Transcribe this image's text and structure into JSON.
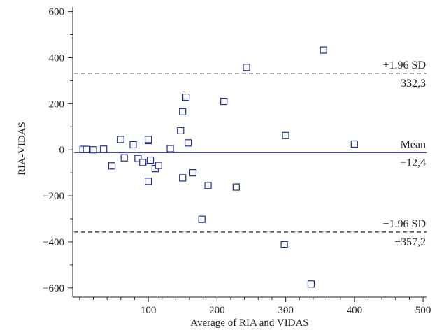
{
  "chart_data": {
    "type": "scatter",
    "title": "",
    "xlabel": "Average of RIA and VIDAS",
    "ylabel": "RIA-VIDAS",
    "xlim": [
      -10,
      505
    ],
    "ylim": [
      -640,
      620
    ],
    "x_ticks": [
      100,
      200,
      300,
      400,
      500
    ],
    "x_tick_labels": [
      "100",
      "200",
      "300",
      "400",
      "500"
    ],
    "y_ticks": [
      -600,
      -400,
      -200,
      0,
      200,
      400,
      600
    ],
    "y_tick_labels": [
      "−600",
      "−400",
      "−200",
      "0",
      "200",
      "400",
      "600"
    ],
    "grid": false,
    "reference_lines": [
      {
        "id": "upper",
        "y": 332.3,
        "style": "dashed",
        "label_top": "+1.96 SD",
        "label_bottom": "332,3"
      },
      {
        "id": "mean",
        "y": -12.4,
        "style": "solid",
        "color": "#2030a0",
        "label_top": "Mean",
        "label_bottom": "−12,4"
      },
      {
        "id": "lower",
        "y": -357.2,
        "style": "dashed",
        "label_top": "−1.96 SD",
        "label_bottom": "−357,2"
      }
    ],
    "series": [
      {
        "marker": "open-square",
        "color": "#1d2f8f",
        "points": [
          [
            5,
            2
          ],
          [
            10,
            2
          ],
          [
            20,
            0
          ],
          [
            35,
            3
          ],
          [
            47,
            -70
          ],
          [
            60,
            45
          ],
          [
            65,
            -35
          ],
          [
            78,
            22
          ],
          [
            85,
            -38
          ],
          [
            92,
            -55
          ],
          [
            100,
            40
          ],
          [
            100,
            45
          ],
          [
            100,
            -137
          ],
          [
            103,
            -45
          ],
          [
            110,
            -82
          ],
          [
            115,
            -68
          ],
          [
            132,
            5
          ],
          [
            147,
            83
          ],
          [
            150,
            165
          ],
          [
            150,
            -122
          ],
          [
            155,
            228
          ],
          [
            158,
            30
          ],
          [
            165,
            -100
          ],
          [
            178,
            -302
          ],
          [
            187,
            -155
          ],
          [
            210,
            210
          ],
          [
            228,
            -162
          ],
          [
            243,
            358
          ],
          [
            298,
            -412
          ],
          [
            300,
            62
          ],
          [
            337,
            -583
          ],
          [
            355,
            433
          ],
          [
            400,
            25
          ]
        ]
      }
    ]
  }
}
